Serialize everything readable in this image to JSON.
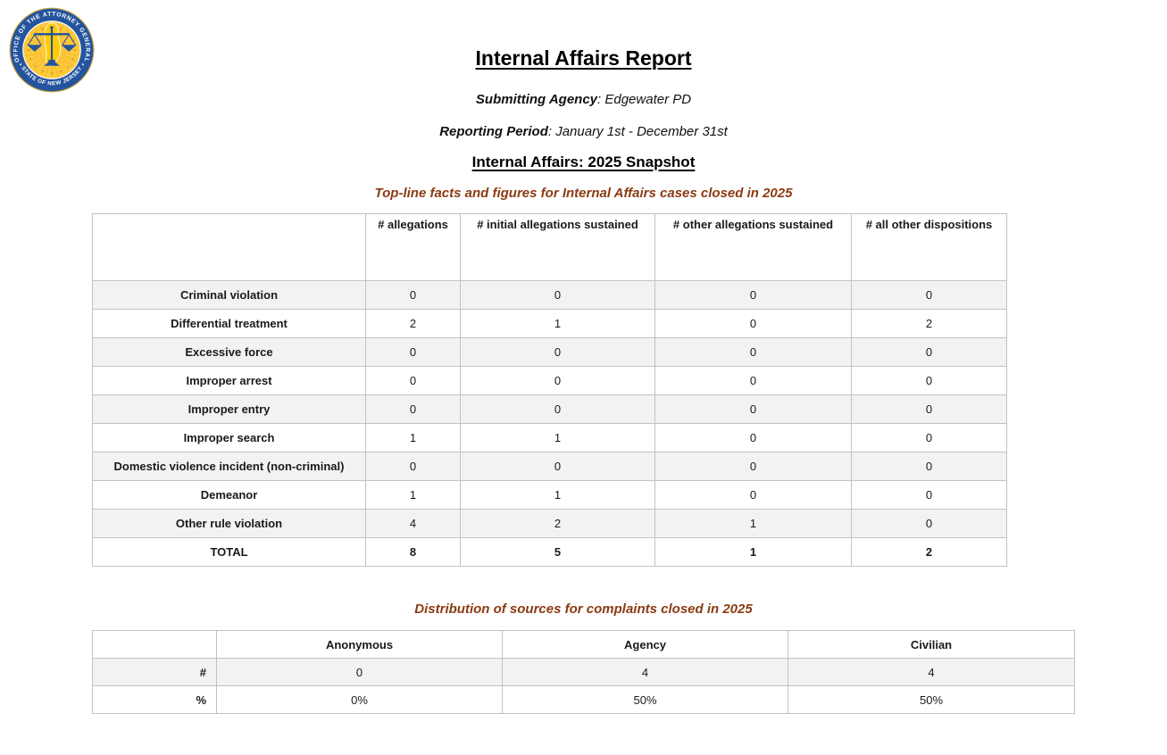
{
  "logo": {
    "top_text": "OFFICE OF THE ATTORNEY GENERAL",
    "bottom_text": "STATE OF NEW JERSEY",
    "colors": {
      "blue": "#24549e",
      "gold": "#fcc93f",
      "gold_dark": "#d49a25",
      "gold_edge": "#c9a136",
      "nj_gold": "#ffcb05"
    }
  },
  "header": {
    "title": "Internal Affairs Report",
    "submitting_agency": {
      "label": "Submitting Agency",
      "value": ": Edgewater PD"
    },
    "reporting_period": {
      "label": "Reporting Period",
      "value": ": January 1st - December 31st"
    },
    "snapshot_title": "Internal Affairs: 2025 Snapshot"
  },
  "allegations_section": {
    "title": "Top-line facts and figures for Internal Affairs cases closed in 2025",
    "columns": [
      "",
      "# allegations",
      "# initial allegations sustained",
      "# other allegations sustained",
      "# all other dispositions"
    ],
    "rows": [
      {
        "label": "Criminal violation",
        "values": [
          "0",
          "0",
          "0",
          "0"
        ]
      },
      {
        "label": "Differential treatment",
        "values": [
          "2",
          "1",
          "0",
          "2"
        ]
      },
      {
        "label": "Excessive force",
        "values": [
          "0",
          "0",
          "0",
          "0"
        ]
      },
      {
        "label": "Improper arrest",
        "values": [
          "0",
          "0",
          "0",
          "0"
        ]
      },
      {
        "label": "Improper entry",
        "values": [
          "0",
          "0",
          "0",
          "0"
        ]
      },
      {
        "label": "Improper search",
        "values": [
          "1",
          "1",
          "0",
          "0"
        ]
      },
      {
        "label": "Domestic violence incident (non-criminal)",
        "values": [
          "0",
          "0",
          "0",
          "0"
        ]
      },
      {
        "label": "Demeanor",
        "values": [
          "1",
          "1",
          "0",
          "0"
        ]
      },
      {
        "label": "Other rule violation",
        "values": [
          "4",
          "2",
          "1",
          "0"
        ]
      },
      {
        "label": "TOTAL",
        "values": [
          "8",
          "5",
          "1",
          "2"
        ],
        "is_total": true
      }
    ]
  },
  "sources_section": {
    "title": "Distribution of sources for complaints closed in 2025",
    "columns": [
      "",
      "Anonymous",
      "Agency",
      "Civilian"
    ],
    "rows": [
      {
        "label": "#",
        "values": [
          "0",
          "4",
          "4"
        ]
      },
      {
        "label": "%",
        "values": [
          "0%",
          "50%",
          "50%"
        ]
      }
    ]
  },
  "colors": {
    "accent_brown": "#8a3b12",
    "row_stripe": "#f2f2f2",
    "table_border": "#c2c2c2"
  }
}
